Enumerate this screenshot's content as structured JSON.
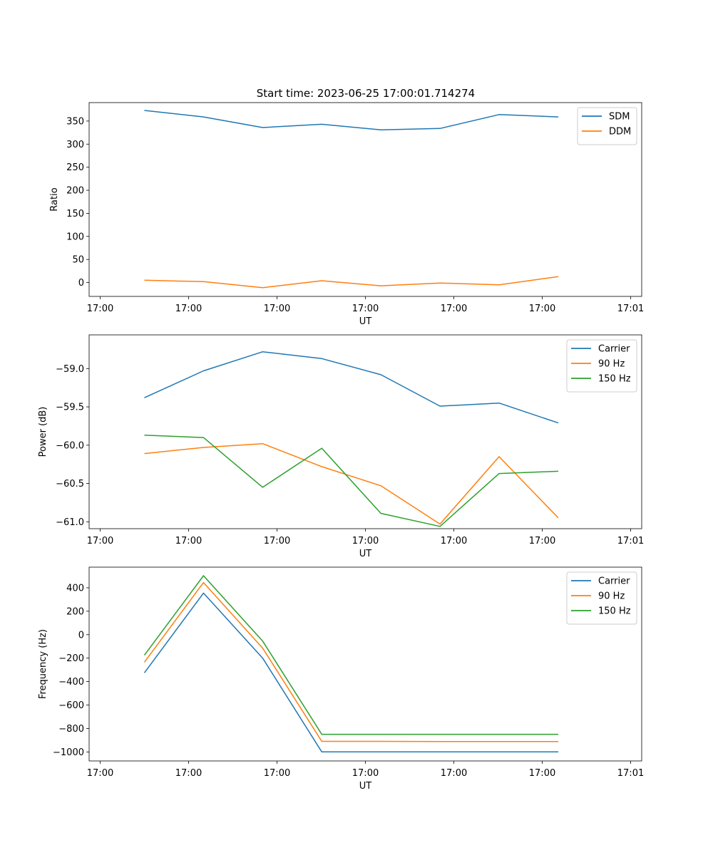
{
  "figure": {
    "title": "Start time: 2023-06-25 17:00:01.714274"
  },
  "colors": {
    "blue": "#1f77b4",
    "orange": "#ff7f0e",
    "green": "#2ca02c"
  },
  "chart_data": [
    {
      "type": "line",
      "title": "Start time: 2023-06-25 17:00:01.714274",
      "xlabel": "UT",
      "ylabel": "Ratio",
      "xlim": [
        0,
        1
      ],
      "ylim": [
        -30,
        390
      ],
      "x_ticks": [
        0.02,
        0.18,
        0.34,
        0.5,
        0.66,
        0.82,
        0.98
      ],
      "x_tick_labels": [
        "17:00",
        "17:00",
        "17:00",
        "17:00",
        "17:00",
        "17:00",
        "17:01"
      ],
      "y_ticks": [
        0,
        50,
        100,
        150,
        200,
        250,
        300,
        350
      ],
      "y_tick_labels": [
        "0",
        "50",
        "100",
        "150",
        "200",
        "250",
        "300",
        "350"
      ],
      "x": [
        0.1,
        0.207,
        0.314,
        0.421,
        0.528,
        0.635,
        0.742,
        0.849
      ],
      "legend": "top-right",
      "series": [
        {
          "name": "SDM",
          "color": "#1f77b4",
          "values": [
            373,
            359,
            336,
            343,
            331,
            334,
            364,
            359
          ]
        },
        {
          "name": "DDM",
          "color": "#ff7f0e",
          "values": [
            5,
            2,
            -11,
            4,
            -7,
            -1,
            -5,
            13
          ]
        }
      ]
    },
    {
      "type": "line",
      "title": "",
      "xlabel": "UT",
      "ylabel": "Power (dB)",
      "xlim": [
        0,
        1
      ],
      "ylim": [
        -61.09,
        -58.56
      ],
      "x_ticks": [
        0.02,
        0.18,
        0.34,
        0.5,
        0.66,
        0.82,
        0.98
      ],
      "x_tick_labels": [
        "17:00",
        "17:00",
        "17:00",
        "17:00",
        "17:00",
        "17:00",
        "17:01"
      ],
      "y_ticks": [
        -59.0,
        -59.5,
        -60.0,
        -60.5,
        -61.0
      ],
      "y_tick_labels": [
        "−59.0",
        "−59.5",
        "−60.0",
        "−60.5",
        "−61.0"
      ],
      "x": [
        0.1,
        0.207,
        0.314,
        0.421,
        0.528,
        0.635,
        0.742,
        0.849
      ],
      "legend": "top-right",
      "series": [
        {
          "name": "Carrier",
          "color": "#1f77b4",
          "values": [
            -59.38,
            -59.03,
            -58.78,
            -58.87,
            -59.08,
            -59.49,
            -59.45,
            -59.71
          ]
        },
        {
          "name": "90 Hz",
          "color": "#ff7f0e",
          "values": [
            -60.11,
            -60.03,
            -59.98,
            -60.28,
            -60.53,
            -61.03,
            -60.15,
            -60.95
          ]
        },
        {
          "name": "150 Hz",
          "color": "#2ca02c",
          "values": [
            -59.87,
            -59.9,
            -60.55,
            -60.04,
            -60.89,
            -61.06,
            -60.37,
            -60.34
          ]
        }
      ]
    },
    {
      "type": "line",
      "title": "",
      "xlabel": "UT",
      "ylabel": "Frequency (Hz)",
      "xlim": [
        0,
        1
      ],
      "ylim": [
        -1077,
        576
      ],
      "x_ticks": [
        0.02,
        0.18,
        0.34,
        0.5,
        0.66,
        0.82,
        0.98
      ],
      "x_tick_labels": [
        "17:00",
        "17:00",
        "17:00",
        "17:00",
        "17:00",
        "17:00",
        "17:01"
      ],
      "y_ticks": [
        400,
        200,
        0,
        -200,
        -400,
        -600,
        -800,
        -1000
      ],
      "y_tick_labels": [
        "400",
        "200",
        "0",
        "−200",
        "−400",
        "−600",
        "−800",
        "−1000"
      ],
      "x": [
        0.1,
        0.207,
        0.314,
        0.421,
        0.528,
        0.635,
        0.742,
        0.849
      ],
      "legend": "top-right",
      "series": [
        {
          "name": "Carrier",
          "color": "#1f77b4",
          "values": [
            -325,
            355,
            -200,
            -1000,
            -1000,
            -1000,
            -1000,
            -1000
          ]
        },
        {
          "name": "90 Hz",
          "color": "#ff7f0e",
          "values": [
            -235,
            445,
            -115,
            -910,
            -910,
            -912,
            -912,
            -912
          ]
        },
        {
          "name": "150 Hz",
          "color": "#2ca02c",
          "values": [
            -175,
            503,
            -55,
            -850,
            -850,
            -850,
            -850,
            -850
          ]
        }
      ]
    }
  ]
}
